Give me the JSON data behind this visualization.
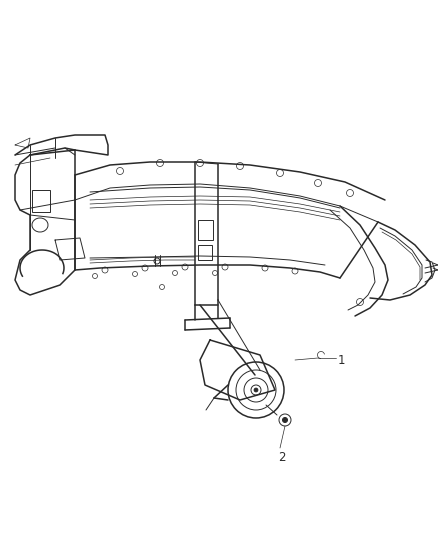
{
  "background_color": "#ffffff",
  "line_color": "#2a2a2a",
  "label_1": "1",
  "label_2": "2",
  "fig_width": 4.38,
  "fig_height": 5.33,
  "dpi": 100,
  "frame_color": "#2a2a2a",
  "detail_color": "#444444"
}
